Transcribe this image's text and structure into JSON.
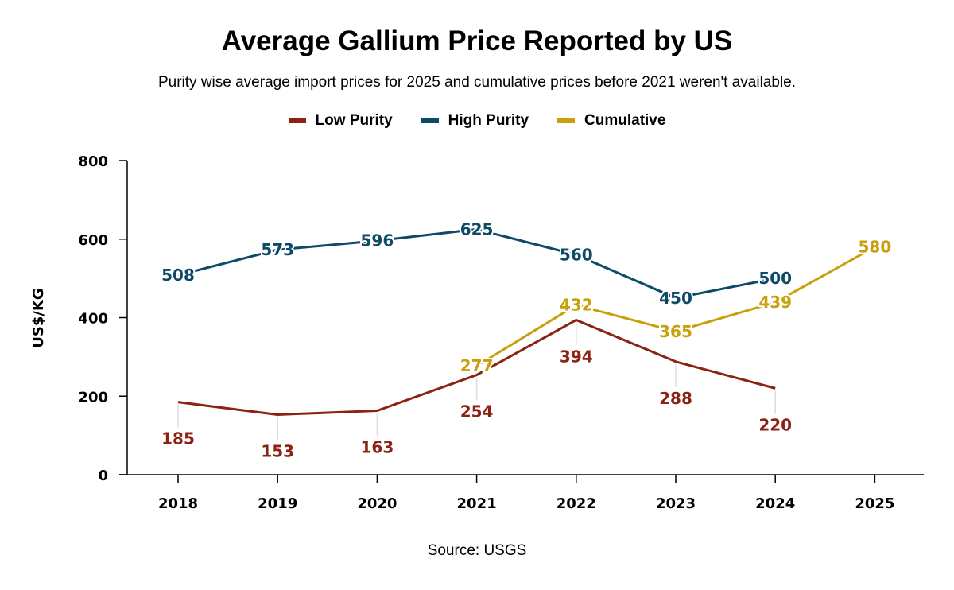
{
  "chart_data": {
    "type": "line",
    "title": "Average Gallium Price Reported by US",
    "subtitle": "Purity wise average import prices for 2025 and cumulative prices before 2021 weren't available.",
    "ylabel": "US$/KG",
    "xlabel": "",
    "source": "Source: USGS",
    "ylim": [
      0,
      800
    ],
    "yticks": [
      0,
      200,
      400,
      600,
      800
    ],
    "categories": [
      "2018",
      "2019",
      "2020",
      "2021",
      "2022",
      "2023",
      "2024",
      "2025"
    ],
    "legend_position": "top-center",
    "grid": false,
    "series": [
      {
        "name": "Low Purity",
        "color": "#8b2214",
        "values": [
          185,
          153,
          163,
          254,
          394,
          288,
          220,
          null
        ]
      },
      {
        "name": "High Purity",
        "color": "#0d4a66",
        "values": [
          508,
          573,
          596,
          625,
          560,
          450,
          500,
          null
        ]
      },
      {
        "name": "Cumulative",
        "color": "#c9a00c",
        "values": [
          null,
          null,
          null,
          277,
          432,
          365,
          439,
          580
        ]
      }
    ]
  }
}
